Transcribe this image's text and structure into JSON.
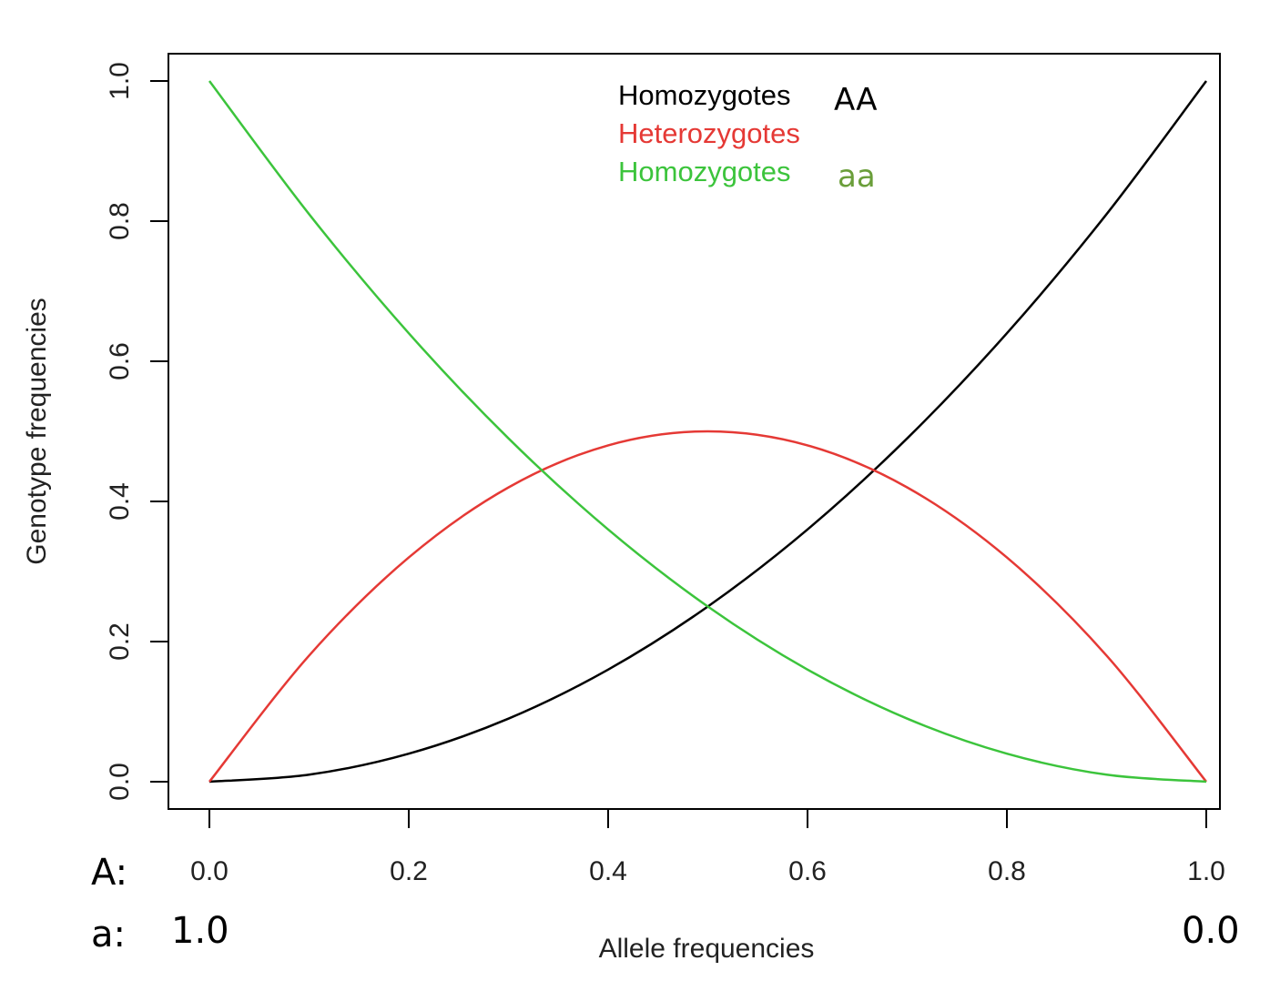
{
  "chart_data": {
    "type": "line",
    "xlabel": "Allele frequencies",
    "ylabel": "Genotype frequencies",
    "xlim": [
      0,
      1
    ],
    "ylim": [
      0,
      1
    ],
    "x_ticks": [
      "0.0",
      "0.2",
      "0.4",
      "0.6",
      "0.8",
      "1.0"
    ],
    "y_ticks": [
      "0.0",
      "0.2",
      "0.4",
      "0.6",
      "0.8",
      "1.0"
    ],
    "x": [
      0,
      0.1,
      0.2,
      0.3,
      0.4,
      0.5,
      0.6,
      0.7,
      0.8,
      0.9,
      1.0
    ],
    "series": [
      {
        "name": "Homozygotes",
        "suffix": "AA",
        "color": "#000000",
        "suffix_color": "#000000",
        "values": [
          0,
          0.01,
          0.04,
          0.09,
          0.16,
          0.25,
          0.36,
          0.49,
          0.64,
          0.81,
          1.0
        ]
      },
      {
        "name": "Heterozygotes",
        "suffix": "",
        "color": "#e53935",
        "suffix_color": "#e53935",
        "values": [
          0,
          0.18,
          0.32,
          0.42,
          0.48,
          0.5,
          0.48,
          0.42,
          0.32,
          0.18,
          0
        ]
      },
      {
        "name": "Homozygotes",
        "suffix": "aa",
        "color": "#3cc43c",
        "suffix_color": "#6a9e3a",
        "values": [
          1.0,
          0.81,
          0.64,
          0.49,
          0.36,
          0.25,
          0.16,
          0.09,
          0.04,
          0.01,
          0
        ]
      }
    ],
    "legend_position": "top-center",
    "grid": false,
    "allele_rows": {
      "A": {
        "label": "A:",
        "values": [
          "0.0",
          "0.2",
          "0.4",
          "0.6",
          "0.8",
          "1.0"
        ]
      },
      "a": {
        "label": "a:",
        "start": "1.0",
        "end": "0.0"
      }
    }
  }
}
